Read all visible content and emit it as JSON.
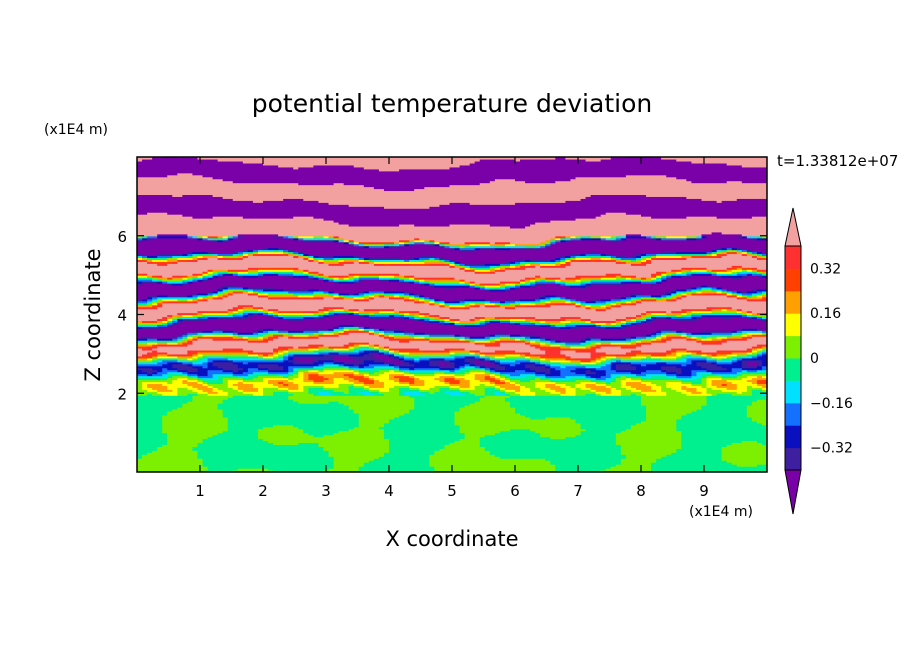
{
  "chart_data": {
    "type": "heatmap",
    "title": "potential temperature deviation",
    "xlabel": "X coordinate",
    "ylabel": "Z coordinate",
    "x_unit_label": "(x1E4 m)",
    "y_unit_label": "(x1E4 m)",
    "time_label": "t=1.33812e+07",
    "xlim": [
      0,
      10
    ],
    "ylim": [
      0,
      8
    ],
    "x_ticks": [
      {
        "value": 1,
        "label": "1"
      },
      {
        "value": 2,
        "label": "2"
      },
      {
        "value": 3,
        "label": "3"
      },
      {
        "value": 4,
        "label": "4"
      },
      {
        "value": 5,
        "label": "5"
      },
      {
        "value": 6,
        "label": "6"
      },
      {
        "value": 7,
        "label": "7"
      },
      {
        "value": 8,
        "label": "8"
      },
      {
        "value": 9,
        "label": "9"
      }
    ],
    "y_ticks": [
      {
        "value": 2,
        "label": "2"
      },
      {
        "value": 4,
        "label": "4"
      },
      {
        "value": 6,
        "label": "6"
      }
    ],
    "colorbar": {
      "levels": [
        -0.4,
        -0.32,
        -0.24,
        -0.16,
        -0.08,
        0,
        0.08,
        0.16,
        0.24,
        0.32,
        0.4
      ],
      "colors": [
        "#7a00a8",
        "#3d1fa0",
        "#0a10c0",
        "#1470ff",
        "#00e0ff",
        "#00f090",
        "#7cf000",
        "#ffff00",
        "#ffa000",
        "#ff4000",
        "#ff3030",
        "#f2a0a0"
      ],
      "labels": [
        {
          "value": 0.32,
          "label": "0.32"
        },
        {
          "value": 0.16,
          "label": "0.16"
        },
        {
          "value": 0,
          "label": "0"
        },
        {
          "value": -0.16,
          "label": "−0.16"
        },
        {
          "value": -0.32,
          "label": "−0.32"
        }
      ],
      "extend": "both"
    }
  }
}
